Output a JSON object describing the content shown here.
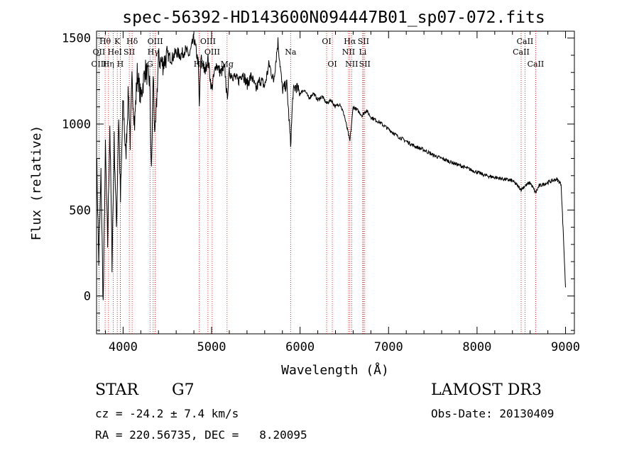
{
  "chart_data": {
    "type": "line",
    "title": "spec-56392-HD143600N094447B01_sp07-072.fits",
    "xlabel": "Wavelength (Å)",
    "ylabel": "Flux (relative)",
    "xlim": [
      3700,
      9100
    ],
    "ylim": [
      -220,
      1540
    ],
    "xticks": [
      4000,
      5000,
      6000,
      7000,
      8000,
      9000
    ],
    "yticks": [
      0,
      500,
      1000,
      1500
    ],
    "series": [
      {
        "name": "spectrum",
        "x": [
          3700,
          3725,
          3750,
          3775,
          3800,
          3825,
          3850,
          3875,
          3900,
          3925,
          3950,
          3970,
          4000,
          4030,
          4060,
          4080,
          4100,
          4130,
          4160,
          4200,
          4250,
          4300,
          4320,
          4340,
          4360,
          4400,
          4450,
          4500,
          4550,
          4600,
          4650,
          4700,
          4750,
          4800,
          4850,
          4861,
          4880,
          4920,
          4960,
          5000,
          5050,
          5100,
          5150,
          5175,
          5200,
          5250,
          5300,
          5350,
          5400,
          5450,
          5500,
          5550,
          5600,
          5650,
          5700,
          5750,
          5800,
          5850,
          5893,
          5920,
          5950,
          6000,
          6050,
          6100,
          6150,
          6200,
          6250,
          6300,
          6350,
          6400,
          6450,
          6500,
          6563,
          6600,
          6650,
          6700,
          6750,
          6800,
          6900,
          7000,
          7100,
          7200,
          7300,
          7400,
          7500,
          7600,
          7700,
          7800,
          7900,
          8000,
          8100,
          8200,
          8300,
          8400,
          8498,
          8542,
          8600,
          8662,
          8700,
          8800,
          8900,
          8950,
          8980,
          9000
        ],
        "y": [
          850,
          200,
          700,
          -50,
          850,
          300,
          1000,
          200,
          900,
          400,
          1050,
          550,
          1150,
          800,
          1200,
          900,
          1250,
          1000,
          1300,
          1150,
          1320,
          1250,
          700,
          1300,
          900,
          1380,
          1350,
          1400,
          1380,
          1420,
          1400,
          1430,
          1400,
          1500,
          1350,
          1100,
          1400,
          1300,
          1380,
          1200,
          1350,
          1300,
          1320,
          1150,
          1300,
          1280,
          1250,
          1300,
          1230,
          1280,
          1200,
          1260,
          1220,
          1350,
          1250,
          1480,
          1200,
          1230,
          880,
          1180,
          1220,
          1180,
          1200,
          1150,
          1180,
          1140,
          1160,
          1120,
          1140,
          1100,
          1120,
          1050,
          900,
          1100,
          1080,
          1050,
          1080,
          1040,
          1010,
          970,
          930,
          900,
          870,
          850,
          820,
          800,
          780,
          760,
          740,
          720,
          700,
          690,
          680,
          670,
          620,
          640,
          660,
          600,
          640,
          660,
          680,
          650,
          300,
          50
        ]
      }
    ],
    "lines": [
      {
        "label": "Hθ",
        "x": 3797,
        "row": 0
      },
      {
        "label": "OII",
        "x": 3727,
        "row": 1
      },
      {
        "label": "OIII",
        "x": 3727,
        "row": 2
      },
      {
        "label": "He",
        "x": 3889,
        "row": 1
      },
      {
        "label": "Hη",
        "x": 3835,
        "row": 2
      },
      {
        "label": "K",
        "x": 3934,
        "row": 0
      },
      {
        "label": "H",
        "x": 3968,
        "row": 2
      },
      {
        "label": "I",
        "x": 3970,
        "row": 1
      },
      {
        "label": "Hδ",
        "x": 4102,
        "row": 0
      },
      {
        "label": "SII",
        "x": 4070,
        "row": 1
      },
      {
        "label": "OIII",
        "x": 4363,
        "row": 0
      },
      {
        "label": "Hγ",
        "x": 4340,
        "row": 1
      },
      {
        "label": "G",
        "x": 4304,
        "row": 2
      },
      {
        "label": "Hβ",
        "x": 4861,
        "row": 2
      },
      {
        "label": "OIII",
        "x": 4959,
        "row": 0
      },
      {
        "label": "OIII",
        "x": 5007,
        "row": 1
      },
      {
        "label": "Mg",
        "x": 5175,
        "row": 2
      },
      {
        "label": "Na",
        "x": 5893,
        "row": 1
      },
      {
        "label": "OI",
        "x": 6300,
        "row": 0
      },
      {
        "label": "OI",
        "x": 6364,
        "row": 2
      },
      {
        "label": "Hα",
        "x": 6563,
        "row": 0
      },
      {
        "label": "NII",
        "x": 6548,
        "row": 1
      },
      {
        "label": "NII",
        "x": 6583,
        "row": 2
      },
      {
        "label": "SII",
        "x": 6716,
        "row": 0
      },
      {
        "label": "Li",
        "x": 6708,
        "row": 1
      },
      {
        "label": "SII",
        "x": 6731,
        "row": 2
      },
      {
        "label": "CaII",
        "x": 8542,
        "row": 0
      },
      {
        "label": "CaII",
        "x": 8498,
        "row": 1
      },
      {
        "label": "CaII",
        "x": 8662,
        "row": 2
      }
    ],
    "line_color": "#cc0000"
  },
  "info": {
    "class": "STAR",
    "subclass": "G7",
    "survey": "LAMOST DR3",
    "cz": "cz = -24.2 ± 7.4 km/s",
    "obs_date": "Obs-Date: 20130409",
    "coords": "RA = 220.56735, DEC =   8.20095"
  }
}
